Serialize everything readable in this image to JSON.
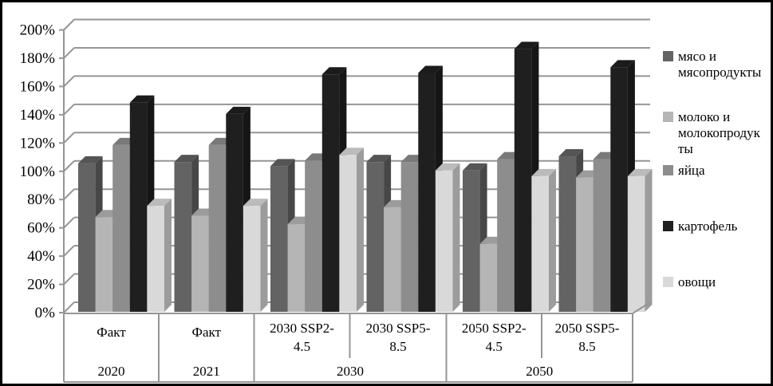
{
  "figure": {
    "background": "#ffffff",
    "border_color": "#000000"
  },
  "colors": {
    "grid": "#959595",
    "axis": "#959595",
    "table_line": "#959595",
    "text": "#000000"
  },
  "chart_data": {
    "type": "bar",
    "style": "3d-clustered-column",
    "title": "",
    "xlabel": "",
    "ylabel": "",
    "unit": "%",
    "ylim": [
      0,
      200
    ],
    "ytick_step": 20,
    "grid": true,
    "legend_position": "right",
    "y_axis": {
      "tick_labels": [
        "0%",
        "20%",
        "40%",
        "60%",
        "80%",
        "100%",
        "120%",
        "140%",
        "160%",
        "180%",
        "200%"
      ]
    },
    "x_axis": {
      "categories": [
        {
          "label": "Факт",
          "lines": [
            "Факт"
          ]
        },
        {
          "label": "Факт",
          "lines": [
            "Факт"
          ]
        },
        {
          "label": "2030 SSP2-4.5",
          "lines": [
            "2030 SSP2-",
            "4.5"
          ]
        },
        {
          "label": "2030 SSP5-8.5",
          "lines": [
            "2030 SSP5-",
            "8.5"
          ]
        },
        {
          "label": "2050 SSP2-4.5",
          "lines": [
            "2050 SSP2-",
            "4.5"
          ]
        },
        {
          "label": "2050 SSP5-8.5",
          "lines": [
            "2050 SSP5-",
            "8.5"
          ]
        }
      ],
      "groups": [
        {
          "label": "2020",
          "span": [
            0,
            1
          ]
        },
        {
          "label": "2021",
          "span": [
            1,
            2
          ]
        },
        {
          "label": "2030",
          "span": [
            2,
            4
          ]
        },
        {
          "label": "2050",
          "span": [
            4,
            6
          ]
        }
      ]
    },
    "series": [
      {
        "name": "мясо и мясопродукты",
        "color": "#636363",
        "values": [
          105,
          106,
          103,
          106,
          100,
          110
        ]
      },
      {
        "name": "молоко и молокопродукты",
        "color": "#b5b5b5",
        "values": [
          67,
          68,
          62,
          74,
          48,
          95
        ]
      },
      {
        "name": "яйца",
        "color": "#8d8d8d",
        "values": [
          118,
          118,
          107,
          106,
          108,
          108
        ]
      },
      {
        "name": "картофель",
        "color": "#1f1f1f",
        "values": [
          148,
          140,
          168,
          169,
          186,
          173
        ]
      },
      {
        "name": "овощи",
        "color": "#d9d9d9",
        "values": [
          75,
          75,
          111,
          100,
          96,
          96
        ]
      }
    ]
  }
}
